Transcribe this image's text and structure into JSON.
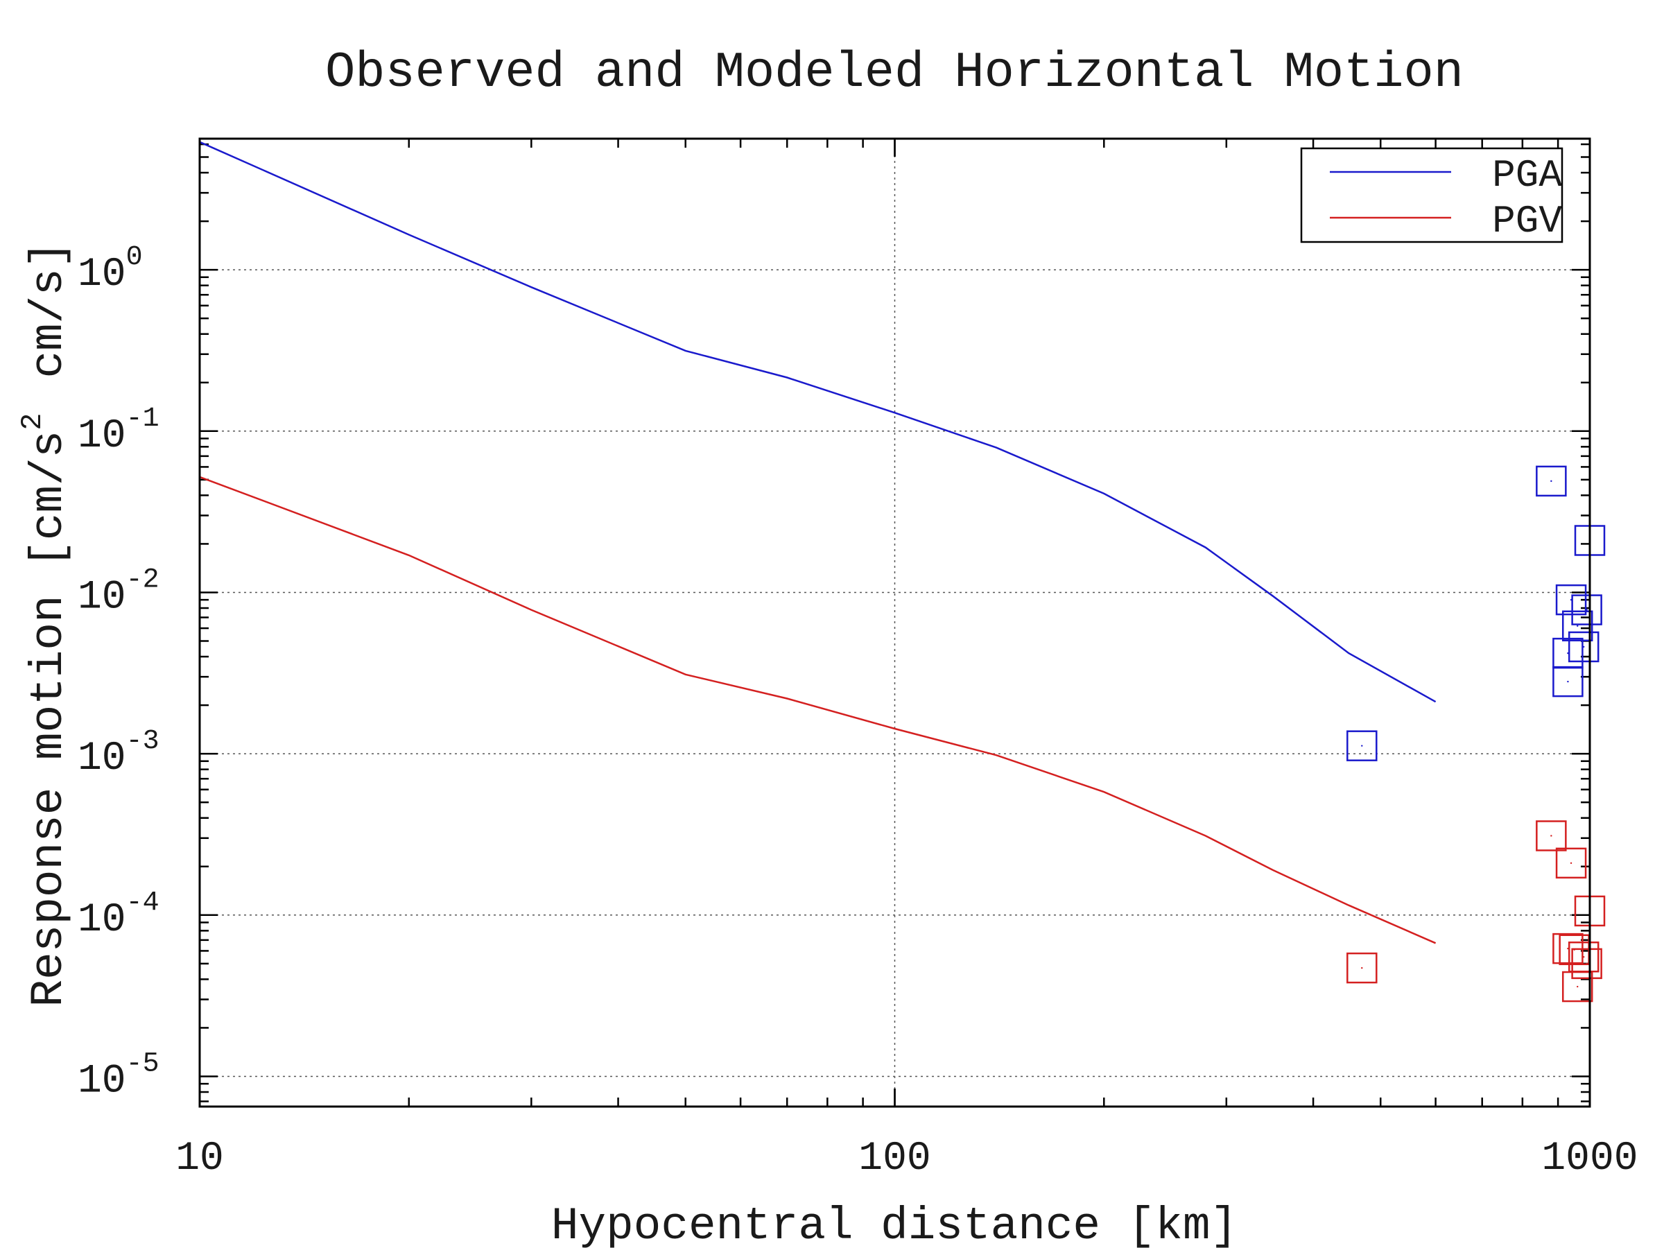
{
  "chart_data": {
    "type": "line",
    "title": "Observed and Modeled Horizontal Motion",
    "xlabel": "Hypocentral distance [km]",
    "ylabel": "Response motion [cm/s² cm/s]",
    "ylabel_parts": {
      "main": "Response motion [cm/s",
      "sup": "2",
      "tail": "cm/s]"
    },
    "x_scale": "log",
    "y_scale": "log",
    "xlim": [
      10,
      1000
    ],
    "ylim": [
      6.5e-06,
      6.5
    ],
    "grid": true,
    "legend_position": "top-right",
    "x_ticks": [
      {
        "value": 10,
        "label": "10"
      },
      {
        "value": 100,
        "label": "100"
      },
      {
        "value": 1000,
        "label": "1000"
      }
    ],
    "y_ticks": [
      {
        "value": 1,
        "base": "10",
        "exp": "0"
      },
      {
        "value": 0.1,
        "base": "10",
        "exp": "-1"
      },
      {
        "value": 0.01,
        "base": "10",
        "exp": "-2"
      },
      {
        "value": 0.001,
        "base": "10",
        "exp": "-3"
      },
      {
        "value": 0.0001,
        "base": "10",
        "exp": "-4"
      },
      {
        "value": 1e-05,
        "base": "10",
        "exp": "-5"
      }
    ],
    "series": [
      {
        "name": "PGA",
        "kind": "line",
        "color": "#1a1acc",
        "x": [
          10,
          20,
          30,
          50,
          70,
          100,
          140,
          200,
          280,
          350,
          450,
          600
        ],
        "y": [
          6.2,
          1.65,
          0.78,
          0.315,
          0.215,
          0.13,
          0.079,
          0.041,
          0.019,
          0.0095,
          0.0042,
          0.0021
        ]
      },
      {
        "name": "PGV",
        "kind": "line",
        "color": "#d42020",
        "x": [
          10,
          20,
          30,
          50,
          70,
          100,
          140,
          200,
          280,
          350,
          450,
          600
        ],
        "y": [
          0.052,
          0.017,
          0.0078,
          0.0031,
          0.0022,
          0.00143,
          0.00098,
          0.00058,
          0.00031,
          0.00019,
          0.000115,
          6.7e-05
        ]
      },
      {
        "name": "PGA observed",
        "kind": "markers",
        "marker": "square",
        "color": "#1a1acc",
        "x": [
          470,
          880,
          1000,
          940,
          960,
          990,
          930,
          980,
          930
        ],
        "y": [
          0.00112,
          0.049,
          0.021,
          0.009,
          0.0062,
          0.0078,
          0.0042,
          0.0046,
          0.0028
        ]
      },
      {
        "name": "PGV observed",
        "kind": "markers",
        "marker": "square",
        "color": "#d42020",
        "x": [
          470,
          880,
          940,
          1000,
          930,
          950,
          980,
          990,
          960
        ],
        "y": [
          4.7e-05,
          0.00031,
          0.00021,
          0.000106,
          6.2e-05,
          6.1e-05,
          5.5e-05,
          5e-05,
          3.6e-05
        ]
      }
    ],
    "legend": [
      {
        "label": "PGA",
        "color": "#1a1acc"
      },
      {
        "label": "PGV",
        "color": "#d42020"
      }
    ]
  }
}
